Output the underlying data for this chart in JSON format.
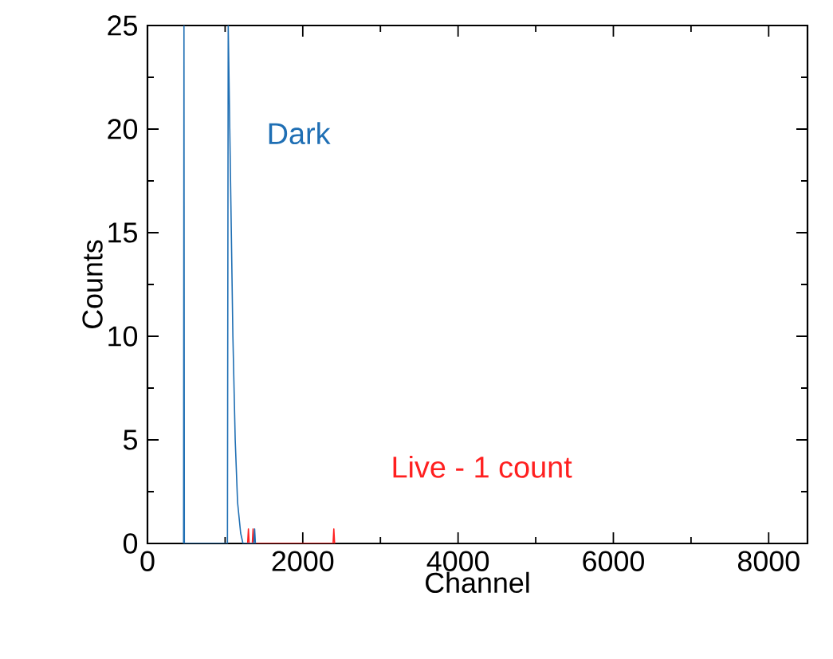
{
  "chart_data": {
    "type": "line",
    "xlabel": "Channel",
    "ylabel": "Counts",
    "xlim": [
      0,
      8500
    ],
    "ylim": [
      0,
      25
    ],
    "xticks": [
      0,
      2000,
      4000,
      6000,
      8000
    ],
    "yticks": [
      0,
      5,
      10,
      15,
      20,
      25
    ],
    "series": [
      {
        "name": "Live - 1 count",
        "color": "#ff2020",
        "x": [
          1290,
          1300,
          1310,
          1350,
          1360,
          1370,
          2390,
          2400,
          2410
        ],
        "values": [
          0,
          0.7,
          0,
          0,
          0.7,
          0,
          0,
          0.7,
          0
        ]
      },
      {
        "name": "Dark",
        "color": "#1f6fb4",
        "x": [
          465,
          470,
          475,
          1030,
          1040,
          1060,
          1080,
          1100,
          1130,
          1160,
          1200,
          1230,
          1370,
          1380,
          1390
        ],
        "values": [
          0,
          25,
          0,
          0,
          25,
          20,
          15,
          10,
          5,
          2,
          0.5,
          0,
          0,
          0.7,
          0
        ]
      }
    ]
  }
}
